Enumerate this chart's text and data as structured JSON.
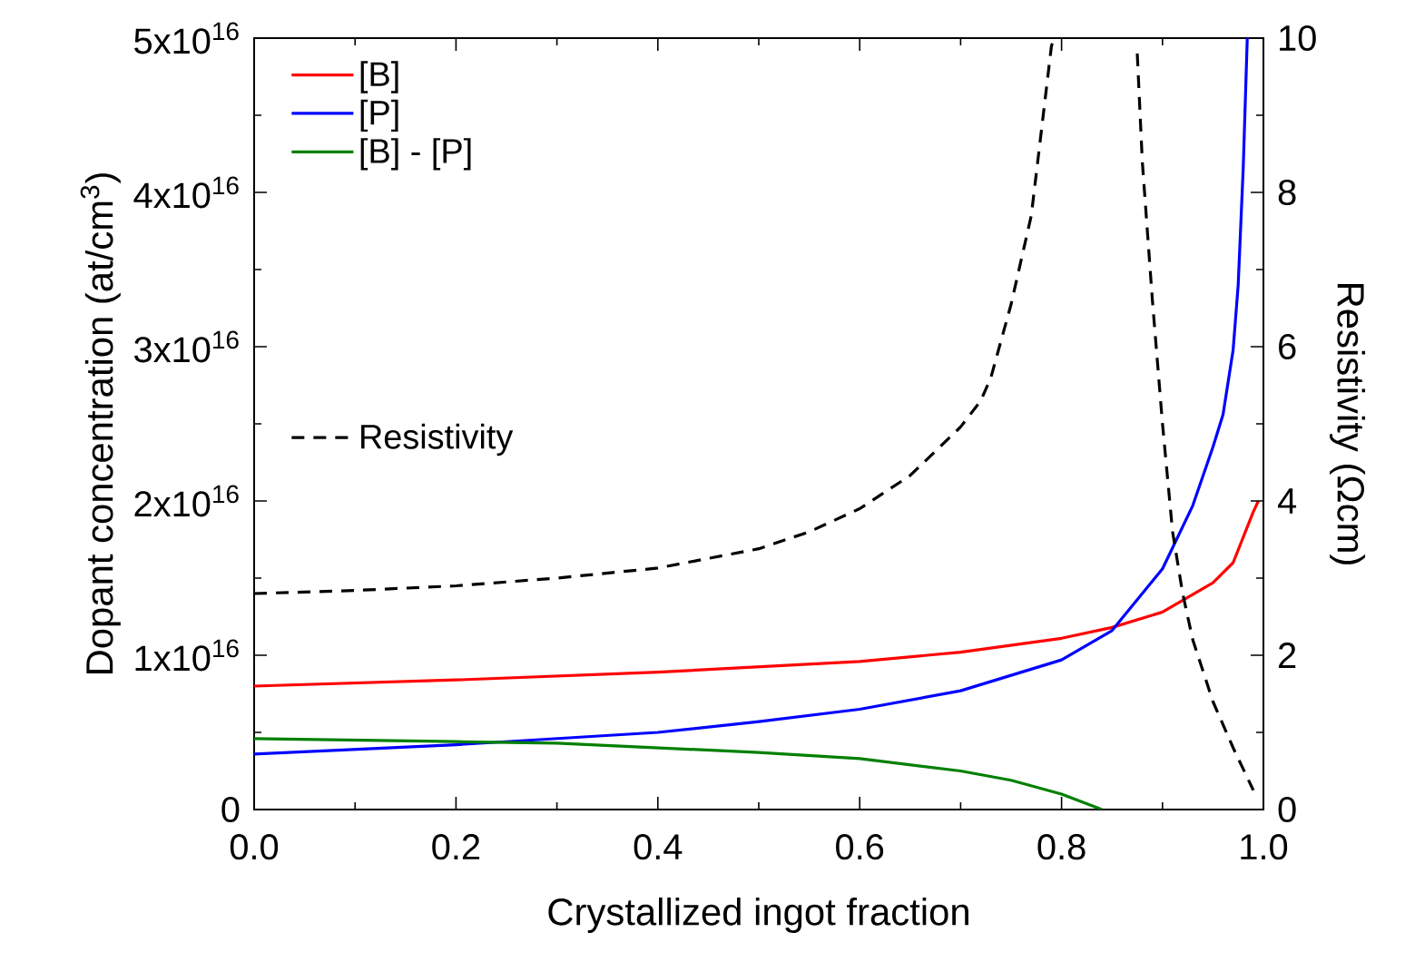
{
  "chart_data": {
    "type": "line",
    "xlabel": "Crystallized ingot fraction",
    "ylabel": "Dopant concentration (at/cm$^{3}$)",
    "y2label": "Resistivity (Ωcm)",
    "xlim": [
      0,
      1
    ],
    "xticks": [
      {
        "value": 0,
        "label": "0.0"
      },
      {
        "value": 0.2,
        "label": "0.2"
      },
      {
        "value": 0.4,
        "label": "0.4"
      },
      {
        "value": 0.6,
        "label": "0.6"
      },
      {
        "value": 0.8,
        "label": "0.8"
      },
      {
        "value": 1,
        "label": "1.0"
      }
    ],
    "ylim": [
      0,
      5e+16
    ],
    "yticks": [
      0,
      {
        "value": 1e+16,
        "label": "1x10$^{16}$"
      },
      {
        "value": 2e+16,
        "label": "2x10$^{16}$"
      },
      {
        "value": 3e+16,
        "label": "3x10$^{16}$"
      },
      {
        "value": 4e+16,
        "label": "4x10$^{16}$"
      },
      {
        "value": 5e+16,
        "label": "5x10$^{16}$"
      }
    ],
    "y2lim": [
      0,
      10
    ],
    "y2ticks": [
      0,
      2,
      4,
      6,
      8,
      10
    ],
    "legend": "top left",
    "marker": "none",
    "grid": false,
    "series": [
      {
        "name": "[B]",
        "color": "#ff0000",
        "x": [
          0,
          0.2,
          0.4,
          0.6,
          0.7,
          0.8,
          0.85,
          0.9,
          0.95,
          0.97,
          0.99,
          0.995
        ],
        "values": [
          8000000000000000.0,
          8400000000000000.0,
          8900000000000000.0,
          9600000000000000.0,
          1.02e+16,
          1.11e+16,
          1.18e+16,
          1.28e+16,
          1.47e+16,
          1.6e+16,
          1.93e+16,
          2e+16
        ]
      },
      {
        "name": "[P]",
        "color": "#0000ff",
        "x": [
          0,
          0.2,
          0.4,
          0.5,
          0.6,
          0.7,
          0.8,
          0.85,
          0.9,
          0.93,
          0.95,
          0.96,
          0.97,
          0.975,
          0.98,
          0.984
        ],
        "values": [
          3600000000000000.0,
          4200000000000000.0,
          5000000000000000.0,
          5700000000000000.0,
          6500000000000000.0,
          7700000000000000.0,
          9700000000000000.0,
          1.16e+16,
          1.56e+16,
          1.97e+16,
          2.35e+16,
          2.56e+16,
          2.98e+16,
          3.4e+16,
          4.16e+16,
          5e+16
        ]
      },
      {
        "name": "[B] - [P]",
        "color": "#008000",
        "x": [
          0,
          0.2,
          0.3,
          0.4,
          0.5,
          0.6,
          0.7,
          0.75,
          0.8,
          0.84
        ],
        "values": [
          4600000000000000.0,
          4400000000000000.0,
          4300000000000000.0,
          4000000000000000.0,
          3700000000000000.0,
          3300000000000000.0,
          2500000000000000.0,
          1900000000000000.0,
          1000000000000000.0,
          0
        ]
      },
      {
        "name": "Resistivity",
        "color": "#000000",
        "axis": "y2",
        "line_style": "dashed",
        "x": [
          0,
          0.1,
          0.2,
          0.3,
          0.4,
          0.5,
          0.55,
          0.6,
          0.65,
          0.7,
          0.72,
          0.73,
          0.75,
          0.77,
          0.78,
          0.79,
          0.793,
          0.83,
          0.875,
          0.88,
          0.89,
          0.9,
          0.91,
          0.92,
          0.93,
          0.95,
          0.97,
          0.99
        ],
        "values": [
          2.8,
          2.84,
          2.9,
          3.0,
          3.13,
          3.38,
          3.6,
          3.9,
          4.33,
          4.96,
          5.3,
          5.6,
          6.55,
          7.7,
          8.8,
          9.9,
          10,
          null,
          9.8,
          8.4,
          6.6,
          5.0,
          3.6,
          2.8,
          2.2,
          1.4,
          0.8,
          0.25
        ]
      }
    ]
  }
}
